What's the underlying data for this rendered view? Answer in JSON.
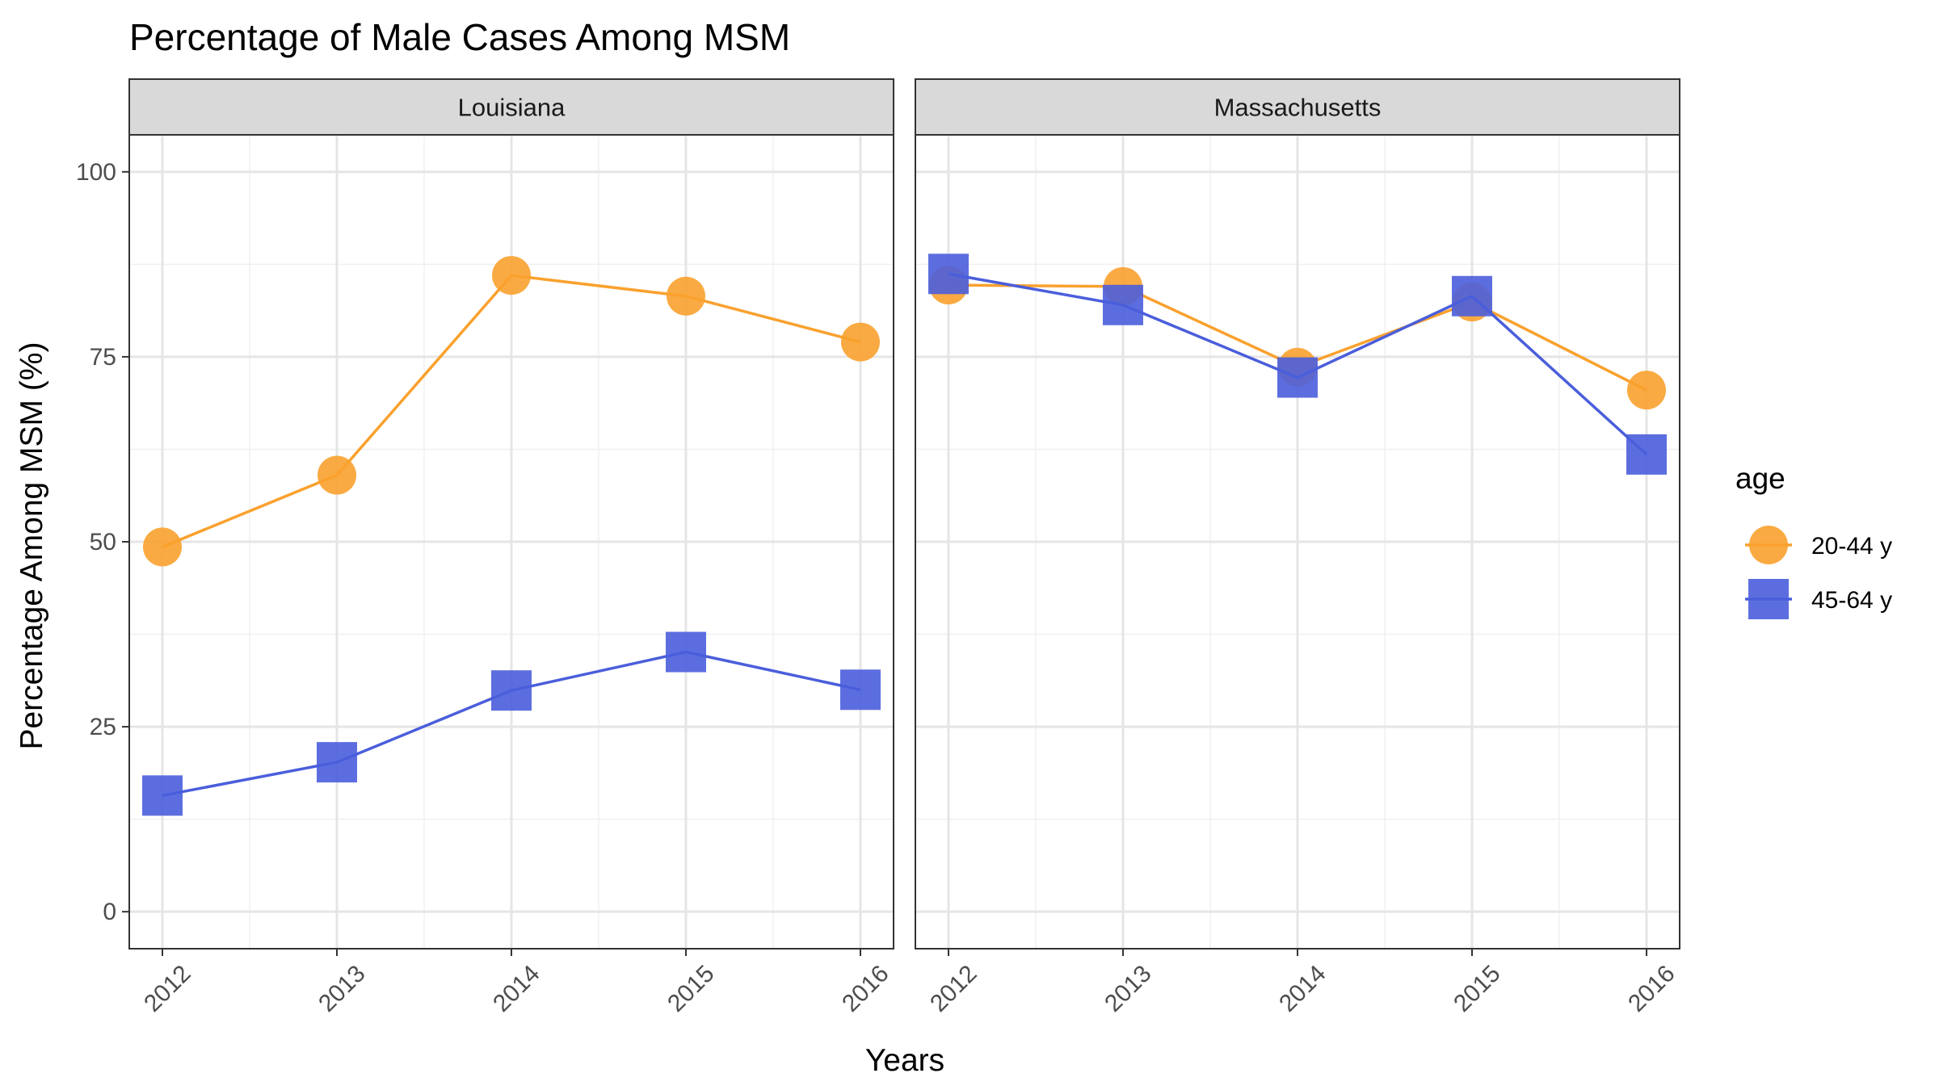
{
  "chart_data": {
    "type": "line",
    "title": "Percentage of Male Cases Among MSM",
    "xlabel": "Years",
    "ylabel": "Percentage Among MSM (%)",
    "ylim": [
      -5,
      105
    ],
    "yticks": [
      0,
      25,
      50,
      75,
      100
    ],
    "categories": [
      "2012",
      "2013",
      "2014",
      "2015",
      "2016"
    ],
    "legend": {
      "title": "age",
      "placement": "right",
      "entries": [
        "20-44 y",
        "45-64 y"
      ]
    },
    "colors": {
      "20-44 y": "#F9A12E",
      "45-64 y": "#4A5EDB"
    },
    "panels": [
      {
        "name": "Louisiana",
        "series": [
          {
            "name": "20-44 y",
            "marker": "circle",
            "values": [
              49.3,
              59.0,
              86.0,
              83.2,
              77.0
            ]
          },
          {
            "name": "45-64 y",
            "marker": "square",
            "values": [
              15.7,
              20.2,
              29.9,
              35.1,
              30.0
            ]
          }
        ]
      },
      {
        "name": "Massachusetts",
        "series": [
          {
            "name": "20-44 y",
            "marker": "circle",
            "values": [
              84.7,
              84.5,
              73.6,
              82.4,
              70.5
            ]
          },
          {
            "name": "45-64 y",
            "marker": "square",
            "values": [
              86.2,
              82.0,
              72.2,
              83.2,
              61.8
            ]
          }
        ]
      }
    ]
  }
}
